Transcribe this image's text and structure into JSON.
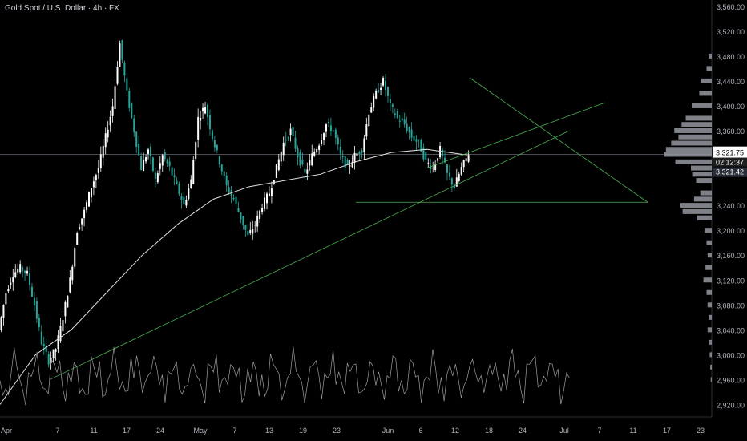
{
  "header": {
    "title": "Gold Spot / U.S. Dollar · 4h · FX"
  },
  "price_axis": {
    "ticks": [
      "3,560.00",
      "3,520.00",
      "3,480.00",
      "3,440.00",
      "3,400.00",
      "3,360.00",
      "3,321.75",
      "3,240.00",
      "3,200.00",
      "3,160.00",
      "3,120.00",
      "3,080.00",
      "3,040.00",
      "3,000.00",
      "2,960.00",
      "2,920.00"
    ],
    "current_price": "3,321.75",
    "countdown": "02:12:37",
    "secondary_price": "3,321.42"
  },
  "time_axis": {
    "labels": [
      "Apr",
      "7",
      "11",
      "17",
      "24",
      "May",
      "7",
      "13",
      "19",
      "23",
      "Jun",
      "6",
      "12",
      "18",
      "24",
      "Jul",
      "7",
      "11",
      "17",
      "23"
    ]
  },
  "colors": {
    "background": "#000000",
    "up_candle": "#26a69a",
    "candle_white": "#ffffff",
    "trendline": "#4caf50",
    "moving_average": "#e0e0e0",
    "volume_profile": "#9598a1",
    "axis_text": "#b2b5be"
  },
  "chart_data": {
    "type": "line",
    "title": "Gold Spot / U.S. Dollar · 4h · FX",
    "xlabel": "",
    "ylabel": "",
    "ylim": [
      2900,
      3570
    ],
    "y_ticks": [
      3560,
      3520,
      3480,
      3440,
      3400,
      3360,
      3320,
      3280,
      3240,
      3200,
      3160,
      3120,
      3080,
      3040,
      3000,
      2960,
      2920
    ],
    "x_ticks": [
      "Apr",
      "7",
      "11",
      "17",
      "24",
      "May",
      "7",
      "13",
      "19",
      "23",
      "Jun",
      "6",
      "12",
      "18",
      "24",
      "Jul",
      "7",
      "11",
      "17",
      "23"
    ],
    "series": [
      {
        "name": "",
        "points": [
          [
            0,
            3040
          ],
          [
            2,
            3100
          ],
          [
            4,
            3130
          ],
          [
            6,
            3140
          ],
          [
            8,
            3130
          ],
          [
            10,
            3080
          ],
          [
            12,
            3020
          ],
          [
            14,
            2990
          ],
          [
            16,
            3010
          ],
          [
            18,
            3060
          ],
          [
            20,
            3120
          ],
          [
            22,
            3200
          ],
          [
            24,
            3230
          ],
          [
            26,
            3270
          ],
          [
            28,
            3300
          ],
          [
            30,
            3350
          ],
          [
            32,
            3400
          ],
          [
            34,
            3500
          ],
          [
            36,
            3420
          ],
          [
            38,
            3360
          ],
          [
            40,
            3300
          ],
          [
            42,
            3330
          ],
          [
            44,
            3280
          ],
          [
            46,
            3320
          ],
          [
            48,
            3300
          ],
          [
            50,
            3270
          ],
          [
            52,
            3240
          ],
          [
            54,
            3280
          ],
          [
            56,
            3380
          ],
          [
            58,
            3400
          ],
          [
            60,
            3350
          ],
          [
            62,
            3310
          ],
          [
            64,
            3270
          ],
          [
            66,
            3250
          ],
          [
            68,
            3220
          ],
          [
            70,
            3190
          ],
          [
            72,
            3210
          ],
          [
            74,
            3240
          ],
          [
            76,
            3260
          ],
          [
            78,
            3300
          ],
          [
            80,
            3340
          ],
          [
            82,
            3360
          ],
          [
            84,
            3320
          ],
          [
            86,
            3290
          ],
          [
            88,
            3320
          ],
          [
            90,
            3340
          ],
          [
            92,
            3370
          ],
          [
            94,
            3360
          ],
          [
            96,
            3320
          ],
          [
            98,
            3300
          ],
          [
            100,
            3320
          ],
          [
            102,
            3330
          ],
          [
            104,
            3390
          ],
          [
            106,
            3420
          ],
          [
            108,
            3440
          ],
          [
            110,
            3400
          ],
          [
            112,
            3380
          ],
          [
            114,
            3370
          ],
          [
            116,
            3350
          ],
          [
            118,
            3340
          ],
          [
            120,
            3310
          ],
          [
            122,
            3300
          ],
          [
            124,
            3330
          ],
          [
            126,
            3290
          ],
          [
            128,
            3270
          ],
          [
            130,
            3300
          ],
          [
            132,
            3321.75
          ]
        ]
      }
    ],
    "moving_average": [
      [
        0,
        2920
      ],
      [
        10,
        3000
      ],
      [
        20,
        3040
      ],
      [
        30,
        3100
      ],
      [
        40,
        3160
      ],
      [
        50,
        3210
      ],
      [
        60,
        3250
      ],
      [
        70,
        3270
      ],
      [
        80,
        3280
      ],
      [
        90,
        3290
      ],
      [
        100,
        3310
      ],
      [
        110,
        3325
      ],
      [
        120,
        3330
      ],
      [
        130,
        3322
      ],
      [
        132,
        3321
      ]
    ],
    "volume_profile_levels": [
      [
        3480,
        6
      ],
      [
        3460,
        10
      ],
      [
        3440,
        20
      ],
      [
        3420,
        24
      ],
      [
        3400,
        38
      ],
      [
        3380,
        50
      ],
      [
        3370,
        58
      ],
      [
        3360,
        72
      ],
      [
        3350,
        64
      ],
      [
        3340,
        78
      ],
      [
        3330,
        88
      ],
      [
        3322,
        92
      ],
      [
        3310,
        70
      ],
      [
        3300,
        40
      ],
      [
        3290,
        36
      ],
      [
        3280,
        30
      ],
      [
        3260,
        22
      ],
      [
        3250,
        34
      ],
      [
        3240,
        60
      ],
      [
        3230,
        56
      ],
      [
        3220,
        28
      ],
      [
        3200,
        14
      ],
      [
        3180,
        10
      ],
      [
        3160,
        8
      ],
      [
        3140,
        12
      ],
      [
        3120,
        16
      ],
      [
        3100,
        10
      ],
      [
        3080,
        8
      ],
      [
        3060,
        6
      ],
      [
        3040,
        8
      ],
      [
        3020,
        6
      ],
      [
        3000,
        4
      ],
      [
        2980,
        3
      ],
      [
        2960,
        2
      ]
    ]
  }
}
